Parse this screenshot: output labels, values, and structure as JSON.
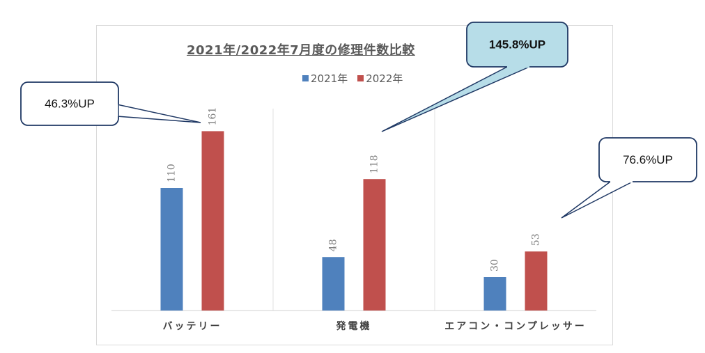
{
  "chart_data": {
    "type": "bar",
    "title": "2021年/2022年7月度の修理件数比較",
    "categories": [
      "バッテリー",
      "発電機",
      "エアコン・コンプレッサー"
    ],
    "series": [
      {
        "name": "2021年",
        "values": [
          110,
          48,
          30
        ],
        "color": "#4f81bd"
      },
      {
        "name": "2022年",
        "values": [
          161,
          118,
          53
        ],
        "color": "#c0504d"
      }
    ],
    "ylim": [
      0,
      180
    ],
    "grid": "vertical separators",
    "legend_position": "top-center",
    "annotations": [
      {
        "text": "46.3%UP",
        "category": "バッテリー",
        "style": "white"
      },
      {
        "text": "145.8%UP",
        "category": "発電機",
        "style": "lightblue"
      },
      {
        "text": "76.6%UP",
        "category": "エアコン・コンプレッサー",
        "style": "white"
      }
    ]
  },
  "colors": {
    "label_text": "#7f7f7f",
    "axis_text": "#404040",
    "callout_border": "#1f3864",
    "callout_blue_fill": "#b7dde8"
  }
}
